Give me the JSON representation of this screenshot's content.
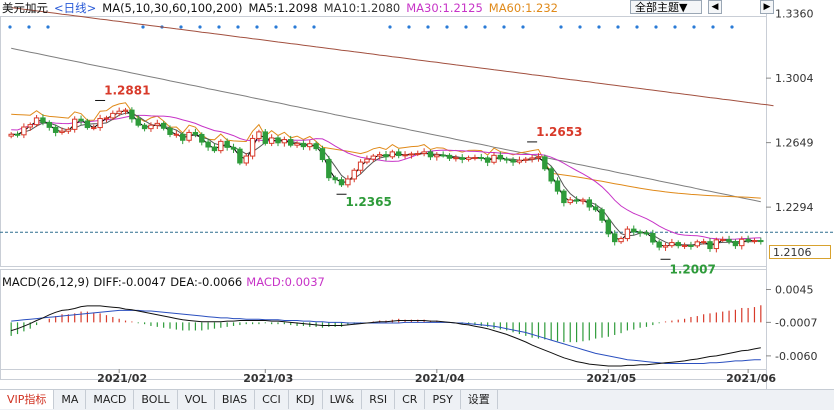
{
  "header": {
    "symbol": "美元加元",
    "period": "<日线>",
    "ma_params": "MA(5,10,30,60,100,200)",
    "ma5": "MA5:1.2098",
    "ma10": "MA10:1.2080",
    "ma30": "MA30:1.2125",
    "ma60": "MA60:1.232",
    "theme_select": "全部主题▼",
    "prev_icon": "chevron-left-icon",
    "next_icon": "chevron-right-icon"
  },
  "macd_header": {
    "params": "MACD(26,12,9)",
    "diff": "DIFF:-0.0047",
    "dea": "DEA:-0.0066",
    "macd": "MACD:0.0037"
  },
  "current_price": "1.2106",
  "tabs": [
    "VIP指标",
    "MA",
    "MACD",
    "BOLL",
    "VOL",
    "BIAS",
    "CCI",
    "KDJ",
    "LW&",
    "RSI",
    "CR",
    "PSY",
    "设置"
  ],
  "colors": {
    "up": "#d83a2a",
    "down": "#2e9b3a",
    "ma5": "#000000",
    "ma10": "#555555",
    "ma30": "#c734c7",
    "ma60": "#e08a1a",
    "ma100": "#7f7f7f",
    "ma200": "#a2503f"
  },
  "chart_data": [
    {
      "type": "candlestick",
      "title": "",
      "x_labels": [
        "2021/02",
        "2021/03",
        "2021/04",
        "2021/05",
        "2021/06"
      ],
      "y_ticks": [
        1.336,
        1.3004,
        1.2649,
        1.2294,
        1.2106
      ],
      "y_tick_labels": [
        "1.3360",
        "1.3004",
        "1.2649",
        "1.2294",
        "1.2106"
      ],
      "ylim": [
        1.197,
        1.339
      ],
      "annotations": [
        {
          "label": "1.2881",
          "value": 1.2881
        },
        {
          "label": "1.2653",
          "value": 1.2653
        },
        {
          "label": "1.2365",
          "value": 1.2365
        },
        {
          "label": "1.2007",
          "value": 1.2007
        }
      ],
      "closes": [
        1.2695,
        1.2692,
        1.2735,
        1.2748,
        1.2785,
        1.276,
        1.2733,
        1.2705,
        1.2712,
        1.2722,
        1.2778,
        1.2768,
        1.2732,
        1.2732,
        1.2782,
        1.2785,
        1.281,
        1.2822,
        1.2828,
        1.278,
        1.2745,
        1.2726,
        1.2745,
        1.2755,
        1.2728,
        1.2694,
        1.2695,
        1.2662,
        1.2705,
        1.2694,
        1.2652,
        1.2625,
        1.2605,
        1.2656,
        1.2623,
        1.2613,
        1.2537,
        1.2575,
        1.2672,
        1.2708,
        1.2645,
        1.2675,
        1.2648,
        1.2666,
        1.2635,
        1.2645,
        1.2627,
        1.2643,
        1.2616,
        1.2556,
        1.2456,
        1.2445,
        1.2417,
        1.2449,
        1.2497,
        1.2542,
        1.2558,
        1.2575,
        1.2583,
        1.2571,
        1.2598,
        1.2578,
        1.2582,
        1.2587,
        1.2589,
        1.2598,
        1.2571,
        1.2581,
        1.2579,
        1.2563,
        1.2566,
        1.2557,
        1.2566,
        1.2567,
        1.2565,
        1.2541,
        1.2579,
        1.2559,
        1.2553,
        1.2542,
        1.2552,
        1.2558,
        1.2565,
        1.2571,
        1.2505,
        1.2438,
        1.2382,
        1.2319,
        1.2334,
        1.2327,
        1.2334,
        1.2295,
        1.228,
        1.2222,
        1.2147,
        1.2104,
        1.2121,
        1.2173,
        1.2158,
        1.2152,
        1.2149,
        1.2102,
        1.2074,
        1.2082,
        1.2099,
        1.2082,
        1.2083,
        1.2081,
        1.2103,
        1.2104,
        1.2066,
        1.2114,
        1.2116,
        1.2105,
        1.2082,
        1.2117,
        1.2108,
        1.211,
        1.2106
      ],
      "series": [
        {
          "name": "MA100",
          "values": [
            1.3168,
            1.3161,
            1.3154,
            1.3147,
            1.314,
            1.3133,
            1.3125,
            1.3118,
            1.3111,
            1.3104,
            1.3097,
            1.309,
            1.3082,
            1.3075,
            1.3068,
            1.3061,
            1.3054,
            1.3047,
            1.304,
            1.3032,
            1.3025,
            1.3018,
            1.3011,
            1.3004,
            1.2997,
            1.2989,
            1.2982,
            1.2975,
            1.2968,
            1.2961,
            1.2954,
            1.2946,
            1.2939,
            1.2932,
            1.2925,
            1.2918,
            1.2911,
            1.2904,
            1.2896,
            1.2889,
            1.2882,
            1.2875,
            1.2868,
            1.2861,
            1.2853,
            1.2846,
            1.2839,
            1.2832,
            1.2825,
            1.2818,
            1.2811,
            1.2803,
            1.2796,
            1.2789,
            1.2782,
            1.2775,
            1.2768,
            1.276,
            1.2753,
            1.2746,
            1.2739,
            1.2732,
            1.2725,
            1.2717,
            1.271,
            1.2703,
            1.2696,
            1.2689,
            1.2682,
            1.2675,
            1.2667,
            1.266,
            1.2653,
            1.2646,
            1.2639,
            1.2632,
            1.2624,
            1.2617,
            1.261,
            1.2603,
            1.2596,
            1.2589,
            1.2582,
            1.2574,
            1.2567,
            1.256,
            1.2553,
            1.2546,
            1.2539,
            1.2531,
            1.2524,
            1.2517,
            1.251,
            1.2503,
            1.2496,
            1.2488,
            1.2481,
            1.2474,
            1.2467,
            1.246,
            1.2453,
            1.2446,
            1.2438,
            1.2431,
            1.2424,
            1.2417,
            1.241,
            1.2403,
            1.2395,
            1.2388,
            1.2381,
            1.2374,
            1.2367,
            1.236,
            1.2352,
            1.2345,
            1.2338,
            1.2331,
            1.2324
          ]
        },
        {
          "name": "MA200",
          "values": [
            1.3392,
            1.3388,
            1.3383,
            1.3379,
            1.3374,
            1.337,
            1.3365,
            1.3361,
            1.3356,
            1.3352,
            1.3347,
            1.3343,
            1.3338,
            1.3334,
            1.3329,
            1.3325,
            1.332,
            1.3316,
            1.3311,
            1.3307,
            1.3302,
            1.3298,
            1.3293,
            1.3289,
            1.3284,
            1.328,
            1.3275,
            1.3271,
            1.3266,
            1.3262,
            1.3257,
            1.3253,
            1.3248,
            1.3244,
            1.3239,
            1.3235,
            1.323,
            1.3226,
            1.3221,
            1.3217,
            1.3212,
            1.3208,
            1.3203,
            1.3199,
            1.3194,
            1.319,
            1.3185,
            1.3181,
            1.3176,
            1.3172,
            1.3167,
            1.3163,
            1.3158,
            1.3154,
            1.3149,
            1.3145,
            1.314,
            1.3136,
            1.3131,
            1.3127,
            1.3122,
            1.3118,
            1.3113,
            1.3109,
            1.3104,
            1.31,
            1.3095,
            1.3091,
            1.3086,
            1.3082,
            1.3077,
            1.3073,
            1.3068,
            1.3064,
            1.3059,
            1.3055,
            1.305,
            1.3046,
            1.3041,
            1.3037,
            1.3032,
            1.3028,
            1.3023,
            1.3019,
            1.3014,
            1.301,
            1.3005,
            1.3001,
            1.2996,
            1.2992,
            1.2987,
            1.2983,
            1.2978,
            1.2974,
            1.2969,
            1.2965,
            1.296,
            1.2956,
            1.2951,
            1.2947,
            1.2942,
            1.2938,
            1.2933,
            1.2929,
            1.2924,
            1.292,
            1.2915,
            1.2911,
            1.2906,
            1.2902,
            1.2897,
            1.2893,
            1.2888,
            1.2884,
            1.2879,
            1.2875,
            1.287,
            1.2866,
            1.2861,
            1.2857,
            1.2852
          ]
        }
      ]
    },
    {
      "type": "bar",
      "title": "",
      "y_ticks": [
        0.0045,
        -0.0007,
        -0.006
      ],
      "y_tick_labels": [
        "0.0045",
        "-0.0007",
        "-0.0060"
      ],
      "ylim": [
        -0.0076,
        0.006
      ],
      "diff_values": [
        -0.002,
        -0.0017,
        -0.0013,
        -0.0009,
        -0.0004,
        0.0,
        0.0005,
        0.0009,
        0.0012,
        0.0013,
        0.0015,
        0.0018,
        0.0019,
        0.0019,
        0.0019,
        0.0018,
        0.0017,
        0.0016,
        0.0014,
        0.0013,
        0.0011,
        0.0009,
        0.0007,
        0.0005,
        0.0003,
        0.0001,
        -0.0001,
        -0.0003,
        -0.0004,
        -0.0005,
        -0.0006,
        -0.0006,
        -0.0006,
        -0.0006,
        -0.0005,
        -0.0005,
        -0.0004,
        -0.0004,
        -0.0004,
        -0.0004,
        -0.0004,
        -0.0005,
        -0.0005,
        -0.0006,
        -0.0007,
        -0.0008,
        -0.0009,
        -0.001,
        -0.0011,
        -0.0012,
        -0.0012,
        -0.0012,
        -0.0012,
        -0.0011,
        -0.001,
        -0.0009,
        -0.0008,
        -0.0007,
        -0.0006,
        -0.0006,
        -0.0005,
        -0.0004,
        -0.0004,
        -0.0004,
        -0.0004,
        -0.0004,
        -0.0005,
        -0.0005,
        -0.0006,
        -0.0007,
        -0.0008,
        -0.001,
        -0.0011,
        -0.0013,
        -0.0015,
        -0.0017,
        -0.002,
        -0.0023,
        -0.0026,
        -0.003,
        -0.0034,
        -0.0038,
        -0.0043,
        -0.0047,
        -0.0051,
        -0.0055,
        -0.0059,
        -0.0063,
        -0.0066,
        -0.0069,
        -0.0071,
        -0.0073,
        -0.0074,
        -0.0075,
        -0.0076,
        -0.0076,
        -0.0076,
        -0.0075,
        -0.0075,
        -0.0074,
        -0.0074,
        -0.0073,
        -0.0072,
        -0.0071,
        -0.007,
        -0.0069,
        -0.0068,
        -0.0066,
        -0.0065,
        -0.0063,
        -0.0061,
        -0.006,
        -0.0058,
        -0.0056,
        -0.0054,
        -0.0052,
        -0.0051,
        -0.0049,
        -0.0047
      ],
      "dea_values": [
        -0.0005,
        -0.0004,
        -0.0003,
        -0.0002,
        -0.0001,
        0.0,
        0.0001,
        0.0002,
        0.0003,
        0.0004,
        0.0005,
        0.0006,
        0.0007,
        0.0008,
        0.0009,
        0.001,
        0.0011,
        0.0012,
        0.0012,
        0.0012,
        0.0012,
        0.0011,
        0.0011,
        0.001,
        0.0009,
        0.0008,
        0.0007,
        0.0006,
        0.0005,
        0.0004,
        0.0003,
        0.0002,
        0.0001,
        0.0,
        0.0,
        -0.0001,
        -0.0001,
        -0.0002,
        -0.0002,
        -0.0002,
        -0.0003,
        -0.0003,
        -0.0003,
        -0.0004,
        -0.0004,
        -0.0004,
        -0.0005,
        -0.0005,
        -0.0006,
        -0.0006,
        -0.0007,
        -0.0007,
        -0.0007,
        -0.0008,
        -0.0008,
        -0.0008,
        -0.0008,
        -0.0008,
        -0.0008,
        -0.0008,
        -0.0008,
        -0.0008,
        -0.0007,
        -0.0007,
        -0.0007,
        -0.0007,
        -0.0007,
        -0.0007,
        -0.0007,
        -0.0007,
        -0.0008,
        -0.0008,
        -0.0009,
        -0.001,
        -0.0011,
        -0.0012,
        -0.0013,
        -0.0015,
        -0.0017,
        -0.0019,
        -0.0021,
        -0.0023,
        -0.0026,
        -0.0029,
        -0.0032,
        -0.0035,
        -0.0038,
        -0.0041,
        -0.0044,
        -0.0047,
        -0.005,
        -0.0053,
        -0.0056,
        -0.0058,
        -0.006,
        -0.0062,
        -0.0064,
        -0.0066,
        -0.0067,
        -0.0068,
        -0.0069,
        -0.007,
        -0.0071,
        -0.0072,
        -0.0072,
        -0.0072,
        -0.0072,
        -0.0072,
        -0.0072,
        -0.0072,
        -0.0071,
        -0.0071,
        -0.007,
        -0.0069,
        -0.0068,
        -0.0068,
        -0.0067,
        -0.0066,
        -0.0066
      ]
    }
  ]
}
